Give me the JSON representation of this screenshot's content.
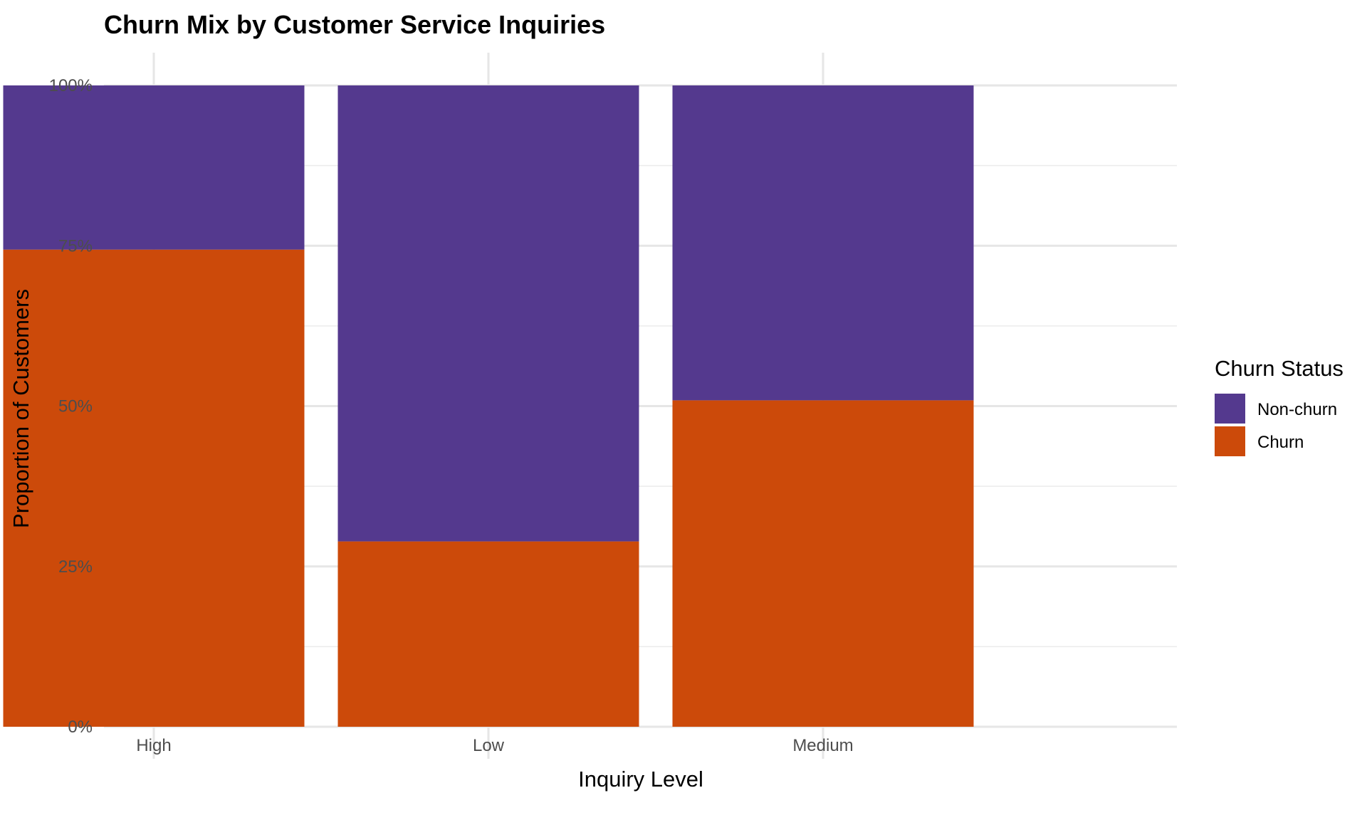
{
  "chart_data": {
    "type": "bar",
    "stacked": true,
    "normalized": true,
    "title": "Churn Mix by Customer Service Inquiries",
    "xlabel": "Inquiry Level",
    "ylabel": "Proportion of Customers",
    "categories": [
      "High",
      "Low",
      "Medium"
    ],
    "series": [
      {
        "name": "Non-churn",
        "color": "#54398e",
        "values": [
          0.256,
          0.711,
          0.491
        ]
      },
      {
        "name": "Churn",
        "color": "#cc4a0a",
        "values": [
          0.744,
          0.289,
          0.509
        ]
      }
    ],
    "stack_order_bottom_to_top": [
      "Churn",
      "Non-churn"
    ],
    "ylim": [
      0,
      1
    ],
    "y_ticks": [
      0,
      0.25,
      0.5,
      0.75,
      1
    ],
    "y_tick_labels": [
      "0%",
      "25%",
      "50%",
      "75%",
      "100%"
    ],
    "grid": true,
    "legend": {
      "title": "Churn Status",
      "position": "right",
      "entries": [
        "Non-churn",
        "Churn"
      ]
    }
  }
}
